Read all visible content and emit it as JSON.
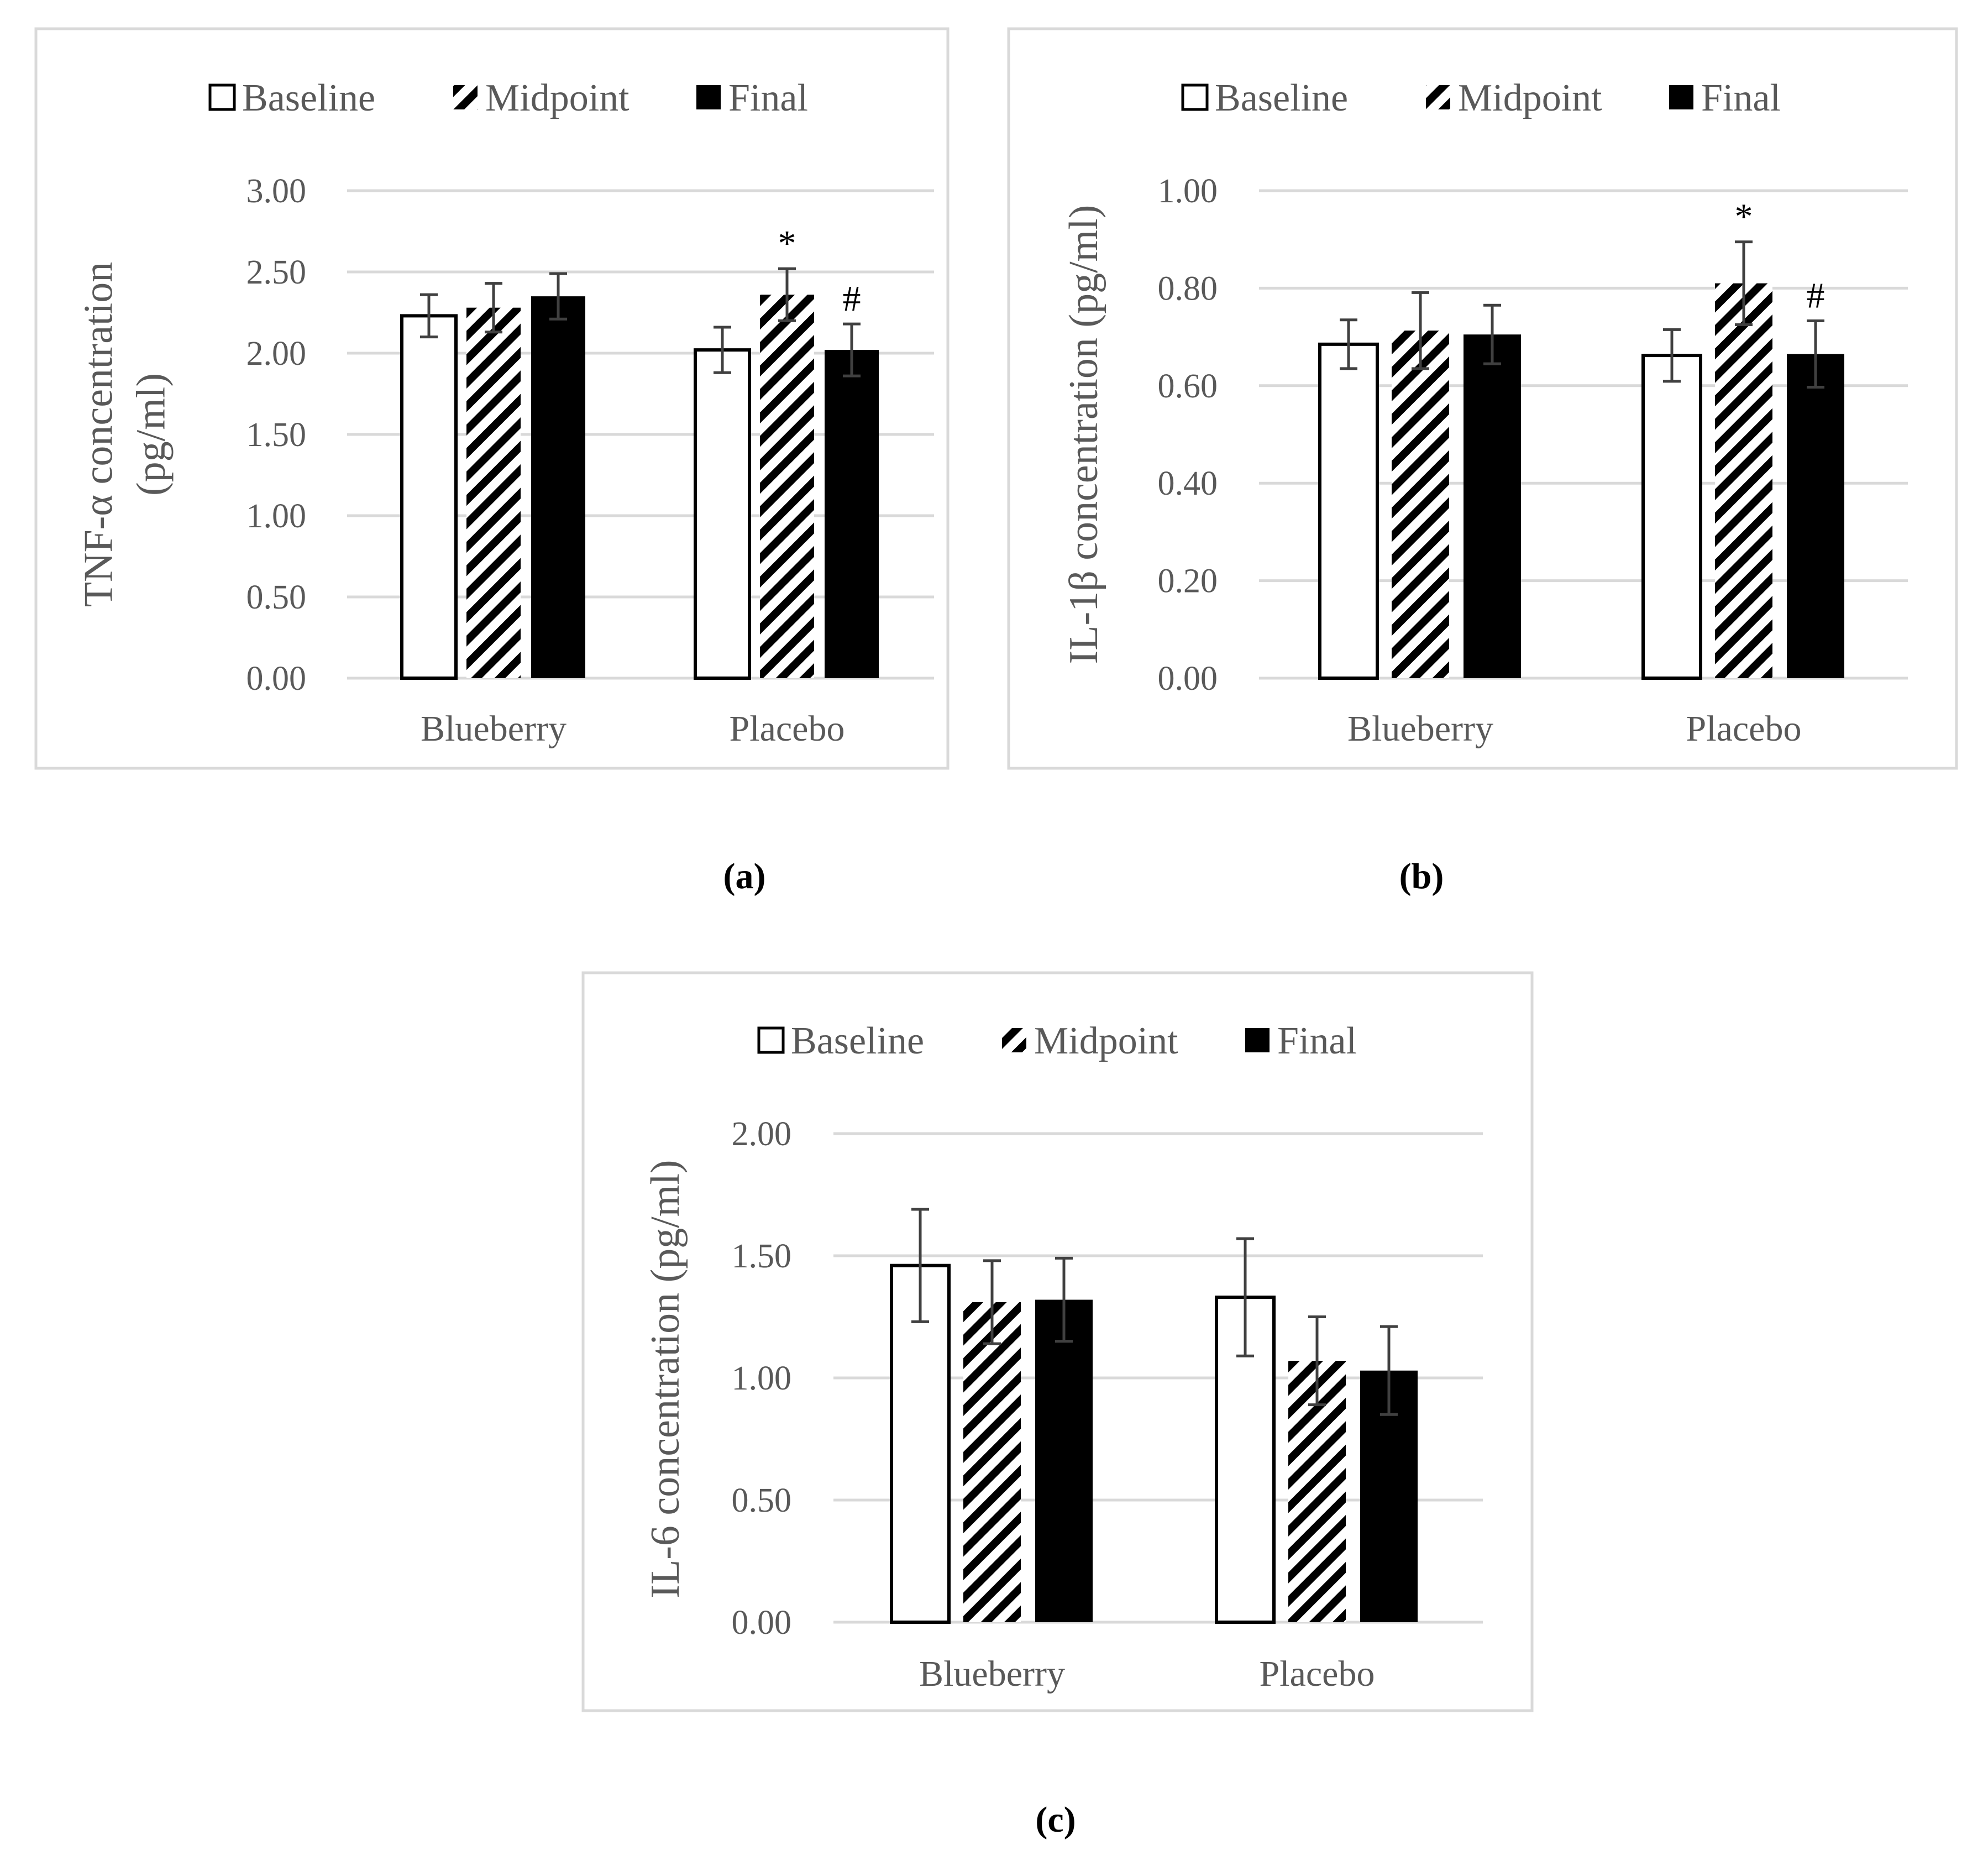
{
  "chart_data": [
    {
      "type": "bar",
      "panel_label": "(a)",
      "ylabel_lines": [
        "TNF-α concentration",
        "(pg/ml)"
      ],
      "categories": [
        "Blueberry",
        "Placebo"
      ],
      "ylim": [
        0,
        3
      ],
      "ytick_labels": [
        "0.00",
        "0.50",
        "1.00",
        "1.50",
        "2.00",
        "2.50",
        "3.00"
      ],
      "grid": true,
      "legend_position": "top",
      "series": [
        {
          "name": "Baseline",
          "fill": "white",
          "values": [
            2.23,
            2.02
          ],
          "errors": [
            0.13,
            0.14
          ],
          "annotations": [
            "",
            ""
          ]
        },
        {
          "name": "Midpoint",
          "fill": "hatch",
          "values": [
            2.28,
            2.36
          ],
          "errors": [
            0.15,
            0.16
          ],
          "annotations": [
            "",
            "*"
          ]
        },
        {
          "name": "Final",
          "fill": "black",
          "values": [
            2.35,
            2.02
          ],
          "errors": [
            0.14,
            0.16
          ],
          "annotations": [
            "",
            "#"
          ]
        }
      ]
    },
    {
      "type": "bar",
      "panel_label": "(b)",
      "ylabel_lines": [
        "IL-1β concentration (pg/ml)"
      ],
      "categories": [
        "Blueberry",
        "Placebo"
      ],
      "ylim": [
        0,
        1
      ],
      "ytick_labels": [
        "0.00",
        "0.20",
        "0.40",
        "0.60",
        "0.80",
        "1.00"
      ],
      "grid": true,
      "legend_position": "top",
      "series": [
        {
          "name": "Baseline",
          "fill": "white",
          "values": [
            0.685,
            0.662
          ],
          "errors": [
            0.05,
            0.053
          ],
          "annotations": [
            "",
            ""
          ]
        },
        {
          "name": "Midpoint",
          "fill": "hatch",
          "values": [
            0.713,
            0.81
          ],
          "errors": [
            0.078,
            0.085
          ],
          "annotations": [
            "",
            "*"
          ]
        },
        {
          "name": "Final",
          "fill": "black",
          "values": [
            0.705,
            0.665
          ],
          "errors": [
            0.06,
            0.068
          ],
          "annotations": [
            "",
            "#"
          ]
        }
      ]
    },
    {
      "type": "bar",
      "panel_label": "(c)",
      "ylabel_lines": [
        "IL-6 concentration (pg/ml)"
      ],
      "categories": [
        "Blueberry",
        "Placebo"
      ],
      "ylim": [
        0,
        2
      ],
      "ytick_labels": [
        "0.00",
        "0.50",
        "1.00",
        "1.50",
        "2.00"
      ],
      "grid": true,
      "legend_position": "top",
      "series": [
        {
          "name": "Baseline",
          "fill": "white",
          "values": [
            1.46,
            1.33
          ],
          "errors": [
            0.23,
            0.24
          ],
          "annotations": [
            "",
            ""
          ]
        },
        {
          "name": "Midpoint",
          "fill": "hatch",
          "values": [
            1.31,
            1.07
          ],
          "errors": [
            0.17,
            0.18
          ],
          "annotations": [
            "",
            ""
          ]
        },
        {
          "name": "Final",
          "fill": "black",
          "values": [
            1.32,
            1.03
          ],
          "errors": [
            0.17,
            0.18
          ],
          "annotations": [
            "",
            ""
          ]
        }
      ]
    }
  ]
}
